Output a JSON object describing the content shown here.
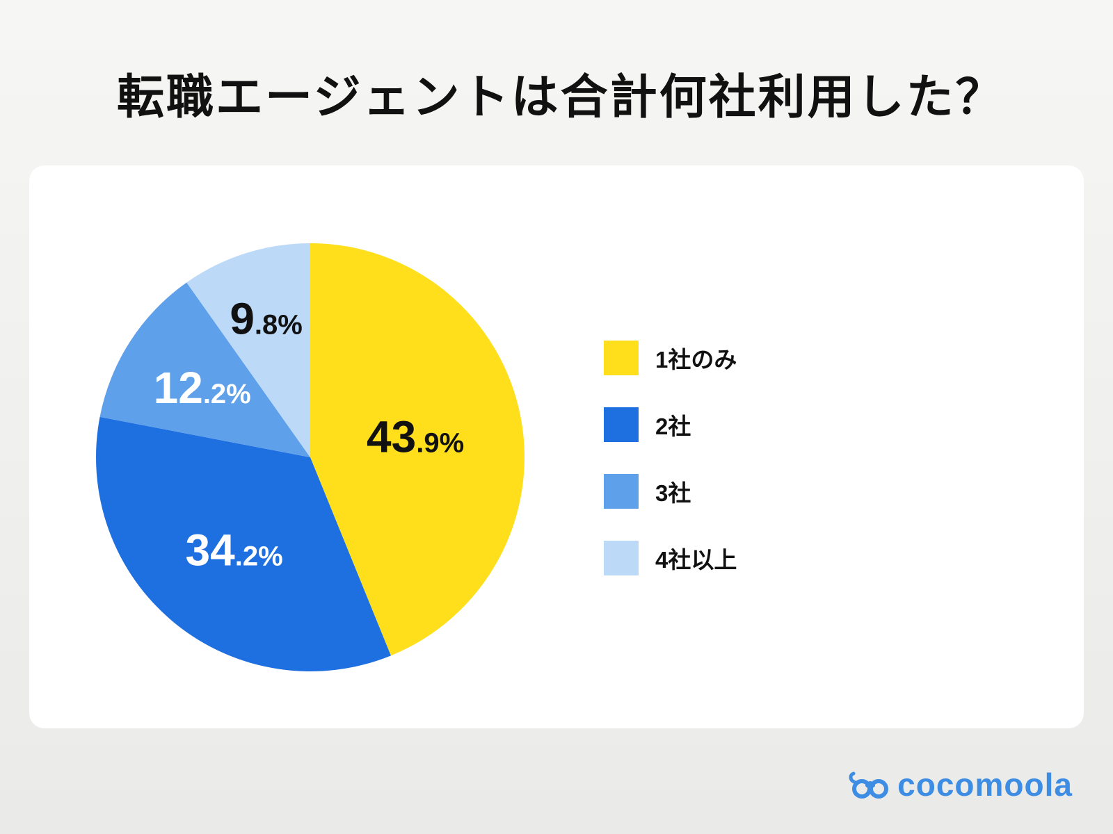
{
  "title": "転職エージェントは合計何社利用した？",
  "chart_data": {
    "type": "pie",
    "labels": [
      "1社のみ",
      "2社",
      "3社",
      "4社以上"
    ],
    "values": [
      43.9,
      34.2,
      12.2,
      9.8
    ],
    "value_labels": [
      "43.9%",
      "34.2%",
      "12.2%",
      "9.8%"
    ],
    "colors": [
      "#ffdf1b",
      "#1e6fe0",
      "#5fa0ea",
      "#bcd9f8"
    ],
    "label_text_colors": [
      "#111111",
      "#ffffff",
      "#ffffff",
      "#111111"
    ],
    "label_radius": [
      0.5,
      0.56,
      0.6,
      0.68
    ],
    "start_angle_deg": 0,
    "direction": "clockwise",
    "legend_position": "right",
    "title": "転職エージェントは合計何社利用した？"
  },
  "legend": {
    "items": [
      {
        "label": "1社のみ",
        "color": "#ffdf1b"
      },
      {
        "label": "2社",
        "color": "#1e6fe0"
      },
      {
        "label": "3社",
        "color": "#5fa0ea"
      },
      {
        "label": "4社以上",
        "color": "#bcd9f8"
      }
    ]
  },
  "logo": {
    "text": "cocomoola",
    "color": "#3d8de5",
    "icon": "cocomoola-goggles-icon"
  }
}
